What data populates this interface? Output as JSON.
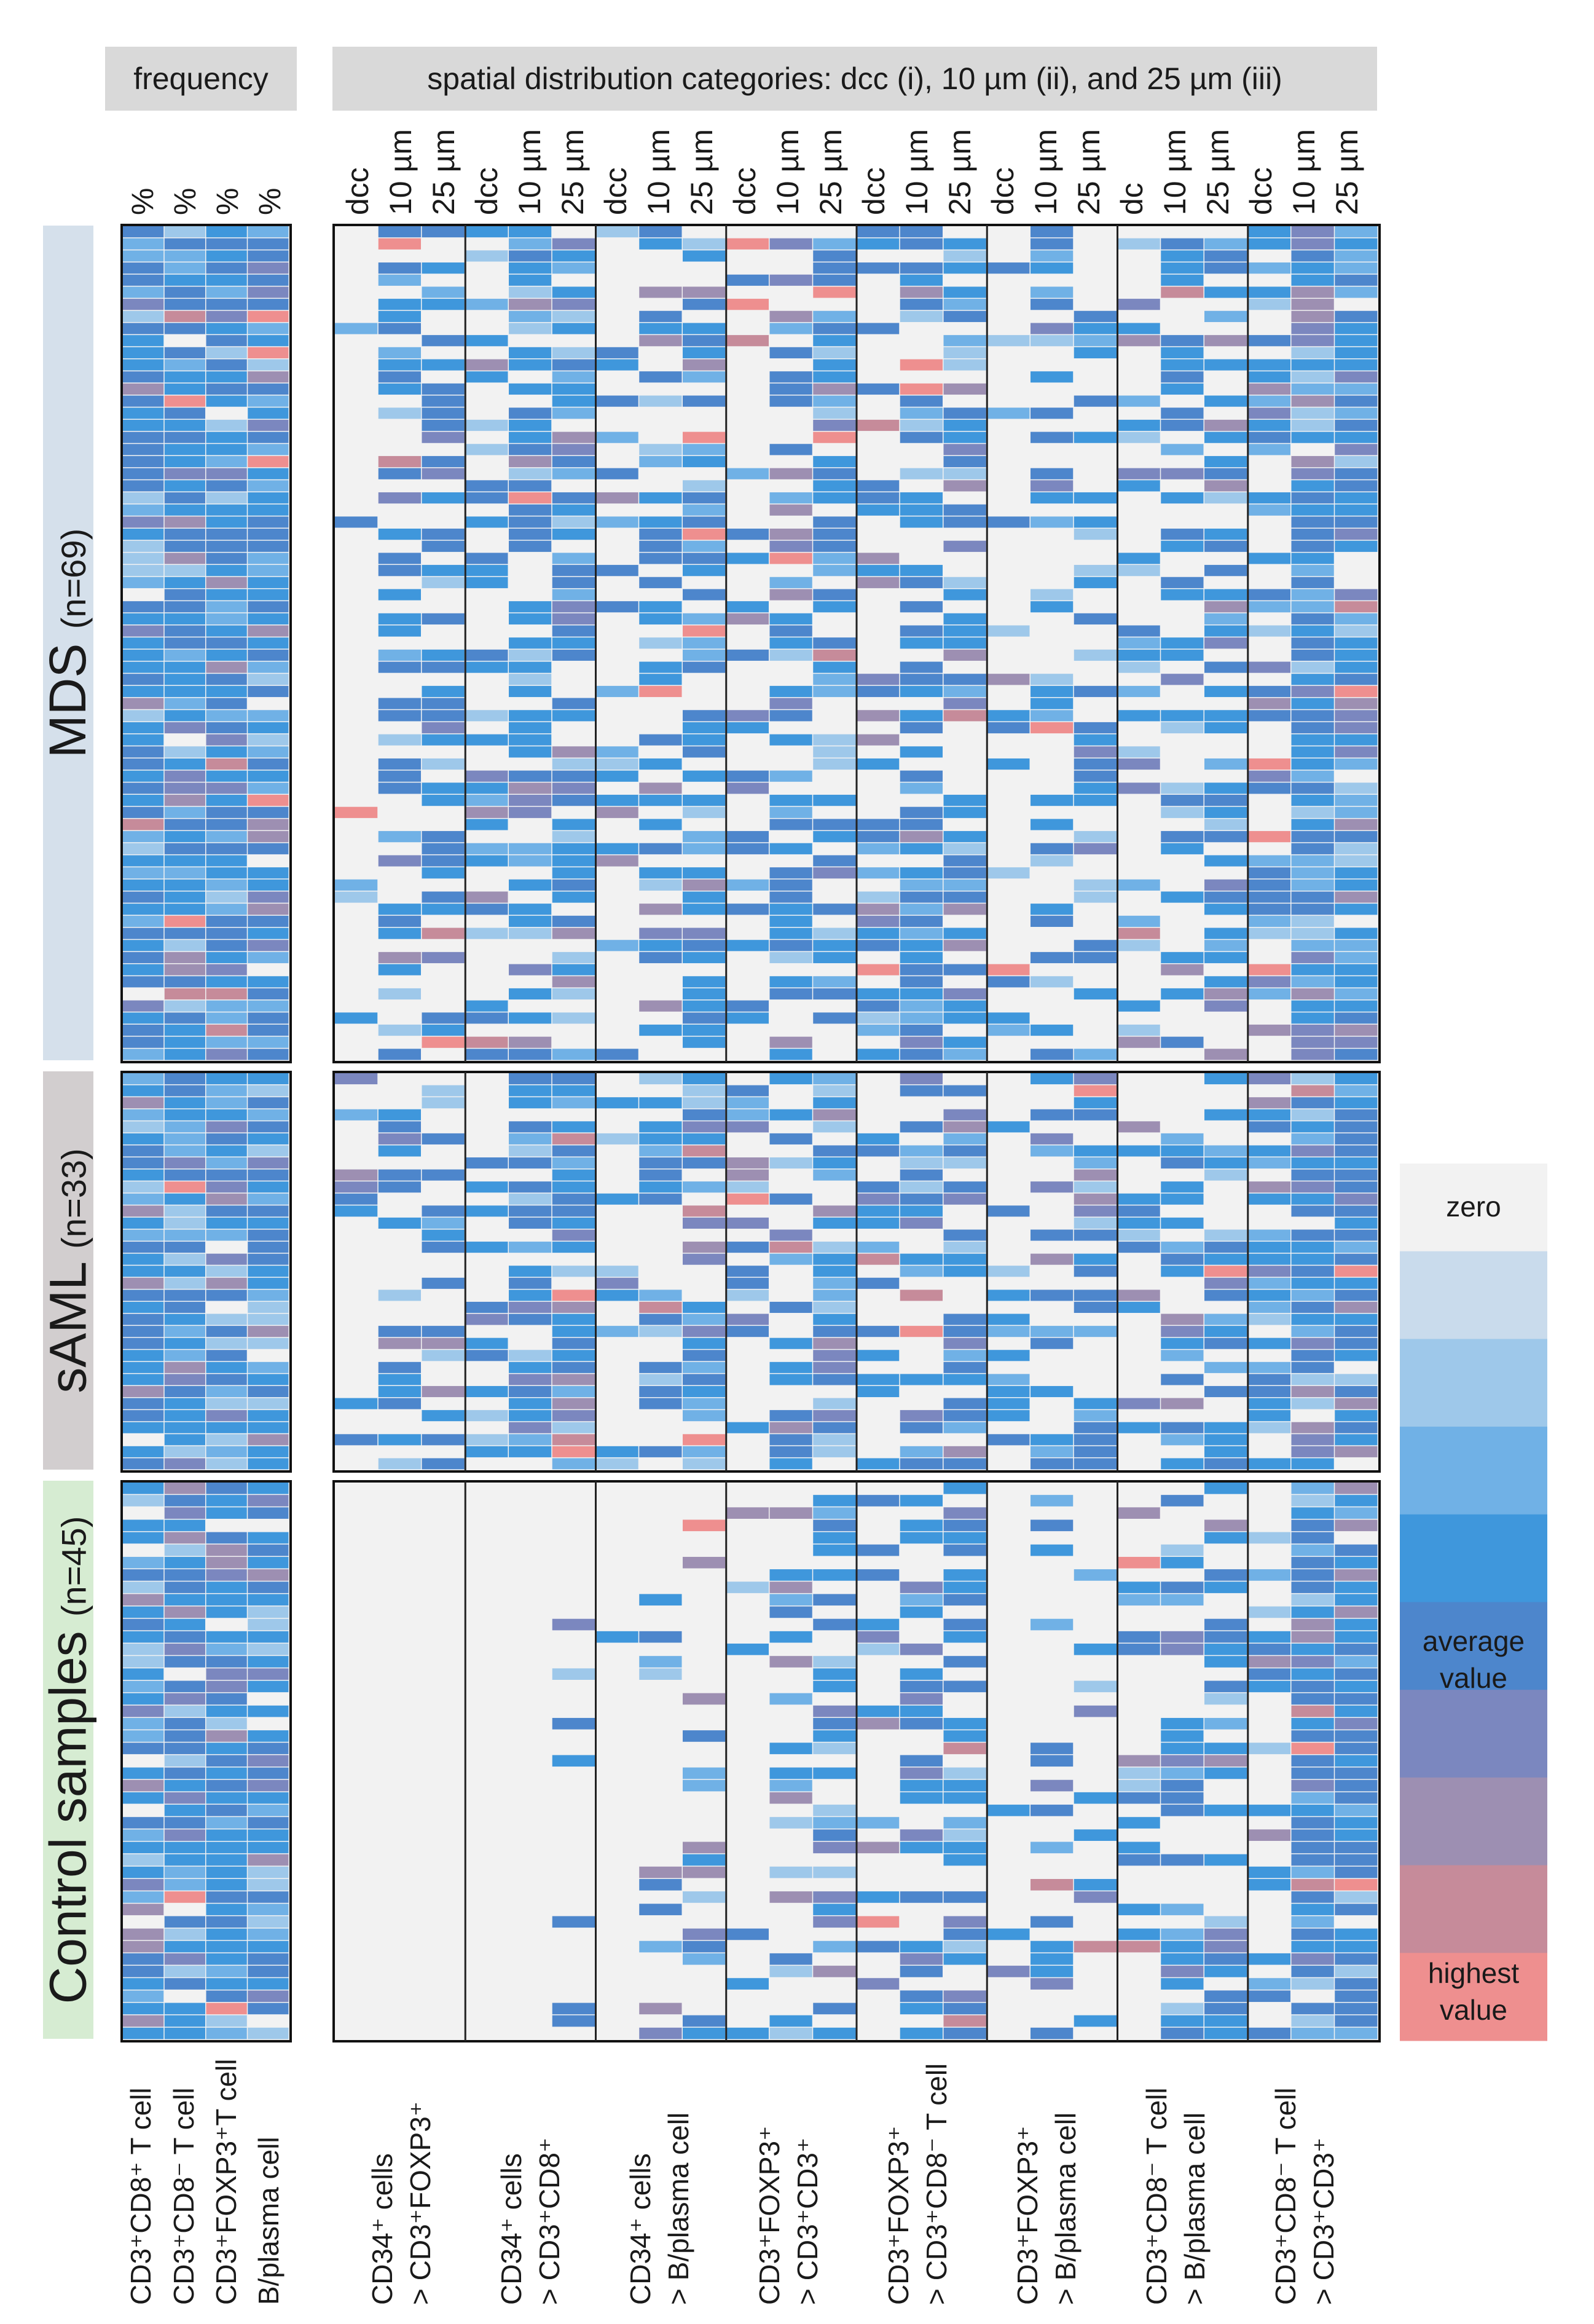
{
  "chart_data": {
    "type": "heatmap",
    "headers": {
      "frequency": "frequency",
      "spatial": "spatial distribution categories: dcc (i), 10 µm (ii), and 25 µm (iii)"
    },
    "frequency_columns": [
      "%",
      "%",
      "%",
      "%"
    ],
    "spatial_column_groups": [
      {
        "labels": [
          "dcc",
          "10 µm",
          "25 µm"
        ],
        "row_label": [
          "CD34⁺ cells",
          "> CD3⁺FOXP3⁺"
        ]
      },
      {
        "labels": [
          "dcc",
          "10 µm",
          "25 µm"
        ],
        "row_label": [
          "CD34⁺ cells",
          "> CD3⁺CD8⁺"
        ]
      },
      {
        "labels": [
          "dcc",
          "10 µm",
          "25 µm"
        ],
        "row_label": [
          "CD34⁺ cells",
          "> B/plasma cell"
        ]
      },
      {
        "labels": [
          "dcc",
          "10 µm",
          "25 µm"
        ],
        "row_label": [
          "CD3⁺FOXP3⁺",
          "> CD3⁺CD3⁺"
        ]
      },
      {
        "labels": [
          "dcc",
          "10 µm",
          "25 µm"
        ],
        "row_label": [
          "CD3⁺FOXP3⁺",
          "> CD3⁺CD8⁻ T cell"
        ]
      },
      {
        "labels": [
          "dcc",
          "10 µm",
          "25 µm"
        ],
        "row_label": [
          "CD3⁺FOXP3⁺",
          "> B/plasma cell"
        ]
      },
      {
        "labels": [
          "dc",
          "10 µm",
          "25 µm"
        ],
        "row_label": [
          "CD3⁺CD8⁻ T cell",
          "> B/plasma cell"
        ]
      },
      {
        "labels": [
          "dcc",
          "10 µm",
          "25 µm"
        ],
        "row_label": [
          "CD3⁺CD8⁻ T cell",
          "> CD3⁺CD3⁺"
        ]
      }
    ],
    "frequency_row_labels": [
      "CD3⁺CD8⁺ T cell",
      "CD3⁺CD8⁻ T cell",
      "CD3⁺FOXP3⁺T cell",
      "B/plasma cell"
    ],
    "groups": [
      {
        "name": "MDS",
        "n_label": "(n=69)",
        "rows": 69,
        "color": "#d5e0eb"
      },
      {
        "name": "sAML",
        "n_label": "(n=33)",
        "rows": 33,
        "color": "#d2cecf"
      },
      {
        "name": "Control samples",
        "n_label": "(n=45)",
        "rows": 45,
        "color": "#d6ecd2"
      }
    ],
    "color_scale": {
      "zero": "#f2f2f2",
      "steps": [
        "#c9dbec",
        "#9ec8ea",
        "#70b1e6",
        "#3f97dc",
        "#4d86cc",
        "#7b87bf",
        "#9d8fb2",
        "#c68b9a",
        "#ee8f8f"
      ]
    },
    "legend": {
      "zero": "zero",
      "average": [
        "average",
        "value"
      ],
      "highest": [
        "highest",
        "value"
      ]
    }
  }
}
